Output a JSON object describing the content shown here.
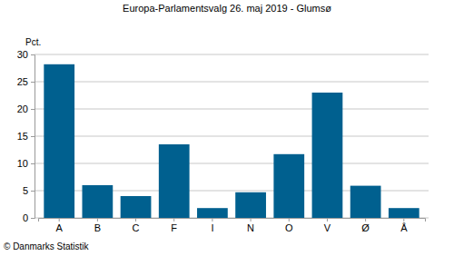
{
  "chart_data": {
    "type": "bar",
    "title": "Europa-Parlamentsvalg 26. maj 2019 - Glumsø",
    "y_label": "Pct.",
    "source": "© Danmarks Statistik",
    "categories": [
      "A",
      "B",
      "C",
      "F",
      "I",
      "N",
      "O",
      "V",
      "Ø",
      "Å"
    ],
    "values": [
      28.2,
      6.0,
      4.0,
      13.5,
      1.8,
      4.7,
      11.7,
      23.0,
      5.9,
      1.8
    ],
    "color": "#00608f",
    "ylim": [
      0,
      30
    ],
    "yticks": [
      0,
      5,
      10,
      15,
      20,
      25,
      30
    ],
    "grid": true
  }
}
